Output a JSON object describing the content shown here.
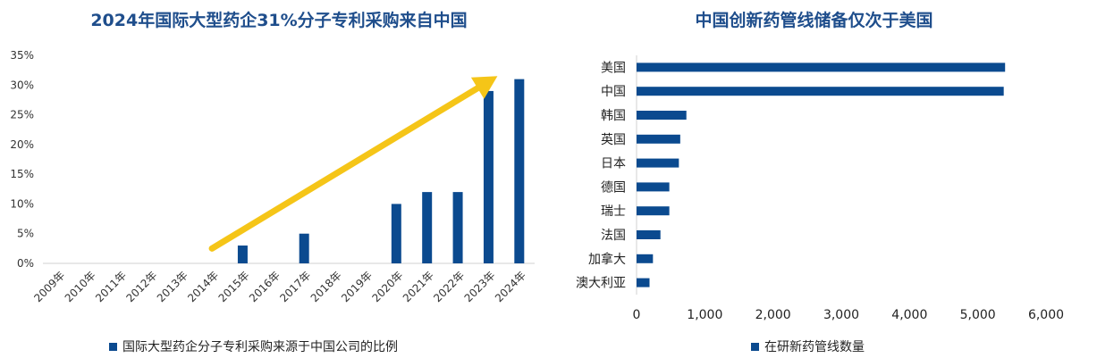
{
  "colors": {
    "bar": "#0b4a8f",
    "arrow": "#f5c518",
    "title": "#1f4e8c",
    "axis": "#d0d0d0",
    "text": "#333333"
  },
  "chart_data": [
    {
      "type": "bar",
      "orientation": "vertical",
      "title": "2024年国际大型药企31%分子专利采购来自中国",
      "categories": [
        "2009年",
        "2010年",
        "2011年",
        "2012年",
        "2013年",
        "2014年",
        "2015年",
        "2016年",
        "2017年",
        "2018年",
        "2019年",
        "2020年",
        "2021年",
        "2022年",
        "2023年",
        "2024年"
      ],
      "series": [
        {
          "name": "国际大型药企分子专利采购来源于中国公司的比例",
          "values": [
            0,
            0,
            0,
            0,
            0,
            0,
            3,
            0,
            5,
            0,
            0,
            10,
            12,
            12,
            29,
            31
          ]
        }
      ],
      "ylim": [
        0,
        35
      ],
      "yticks": [
        "0%",
        "5%",
        "10%",
        "15%",
        "20%",
        "25%",
        "30%",
        "35%"
      ],
      "grid": false,
      "legend": "bottom",
      "annotations": [
        {
          "kind": "trend-arrow",
          "from_category": "2014年",
          "to_category": "2023年",
          "color": "yellow"
        }
      ]
    },
    {
      "type": "bar",
      "orientation": "horizontal",
      "title": "中国创新药管线储备仅次于美国",
      "categories": [
        "美国",
        "中国",
        "韩国",
        "英国",
        "日本",
        "德国",
        "瑞士",
        "法国",
        "加拿大",
        "澳大利亚"
      ],
      "series": [
        {
          "name": "在研新药管线数量",
          "values": [
            5400,
            5380,
            730,
            640,
            620,
            480,
            480,
            350,
            240,
            190
          ]
        }
      ],
      "xlim": [
        0,
        6000
      ],
      "xticks": [
        "0",
        "1,000",
        "2,000",
        "3,000",
        "4,000",
        "5,000",
        "6,000"
      ],
      "grid": false,
      "legend": "bottom"
    }
  ]
}
